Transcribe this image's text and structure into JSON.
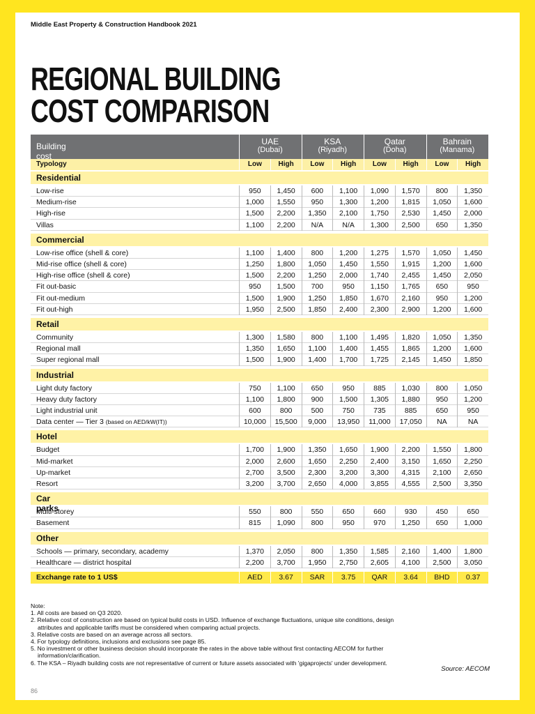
{
  "header": {
    "title": "Middle East Property & Construction Handbook 2021"
  },
  "title": [
    "REGIONAL BUILDING",
    "COST COMPARISON"
  ],
  "table": {
    "caption": "Building cost (US$/sqm)",
    "regions": [
      {
        "name": "UAE",
        "city": "(Dubai)"
      },
      {
        "name": "KSA",
        "city": "(Riyadh)"
      },
      {
        "name": "Qatar",
        "city": "(Doha)"
      },
      {
        "name": "Bahrain",
        "city": "(Manama)"
      }
    ],
    "typology": "Typology",
    "subheaders": [
      "Low",
      "High",
      "Low",
      "High",
      "Low",
      "High",
      "Low",
      "High"
    ],
    "sections": [
      {
        "name": "Residential",
        "rows": [
          {
            "label": "Low-rise",
            "values": [
              "950",
              "1,450",
              "600",
              "1,100",
              "1,090",
              "1,570",
              "800",
              "1,350"
            ]
          },
          {
            "label": "Medium-rise",
            "values": [
              "1,000",
              "1,550",
              "950",
              "1,300",
              "1,200",
              "1,815",
              "1,050",
              "1,600"
            ]
          },
          {
            "label": "High-rise",
            "values": [
              "1,500",
              "2,200",
              "1,350",
              "2,100",
              "1,750",
              "2,530",
              "1,450",
              "2,000"
            ]
          },
          {
            "label": "Villas",
            "values": [
              "1,100",
              "2,200",
              "N/A",
              "N/A",
              "1,300",
              "2,500",
              "650",
              "1,350"
            ]
          }
        ]
      },
      {
        "name": "Commercial",
        "rows": [
          {
            "label": "Low-rise office (shell & core)",
            "values": [
              "1,100",
              "1,400",
              "800",
              "1,200",
              "1,275",
              "1,570",
              "1,050",
              "1,450"
            ]
          },
          {
            "label": "Mid-rise office (shell & core)",
            "values": [
              "1,250",
              "1,800",
              "1,050",
              "1,450",
              "1,550",
              "1,915",
              "1,200",
              "1,600"
            ]
          },
          {
            "label": "High-rise office (shell & core)",
            "values": [
              "1,500",
              "2,200",
              "1,250",
              "2,000",
              "1,740",
              "2,455",
              "1,450",
              "2,050"
            ]
          },
          {
            "label": "Fit out-basic",
            "values": [
              "950",
              "1,500",
              "700",
              "950",
              "1,150",
              "1,765",
              "650",
              "950"
            ]
          },
          {
            "label": "Fit out-medium",
            "values": [
              "1,500",
              "1,900",
              "1,250",
              "1,850",
              "1,670",
              "2,160",
              "950",
              "1,200"
            ]
          },
          {
            "label": "Fit out-high",
            "values": [
              "1,950",
              "2,500",
              "1,850",
              "2,400",
              "2,300",
              "2,900",
              "1,200",
              "1,600"
            ]
          }
        ]
      },
      {
        "name": "Retail",
        "rows": [
          {
            "label": "Community",
            "values": [
              "1,300",
              "1,580",
              "800",
              "1,100",
              "1,495",
              "1,820",
              "1,050",
              "1,350"
            ]
          },
          {
            "label": "Regional mall",
            "values": [
              "1,350",
              "1,650",
              "1,100",
              "1,400",
              "1,455",
              "1,865",
              "1,200",
              "1,600"
            ]
          },
          {
            "label": "Super regional mall",
            "values": [
              "1,500",
              "1,900",
              "1,400",
              "1,700",
              "1,725",
              "2,145",
              "1,450",
              "1,850"
            ]
          }
        ]
      },
      {
        "name": "Industrial",
        "rows": [
          {
            "label": "Light duty factory",
            "values": [
              "750",
              "1,100",
              "650",
              "950",
              "885",
              "1,030",
              "800",
              "1,050"
            ]
          },
          {
            "label": "Heavy duty factory",
            "values": [
              "1,100",
              "1,800",
              "900",
              "1,500",
              "1,305",
              "1,880",
              "950",
              "1,200"
            ]
          },
          {
            "label": "Light industrial unit",
            "values": [
              "600",
              "800",
              "500",
              "750",
              "735",
              "885",
              "650",
              "950"
            ]
          },
          {
            "label": "Data center — Tier 3",
            "label_note": "(based on AED/kW(IT))",
            "values": [
              "10,000",
              "15,500",
              "9,000",
              "13,950",
              "11,000",
              "17,050",
              "NA",
              "NA"
            ]
          }
        ]
      },
      {
        "name": "Hotel",
        "rows": [
          {
            "label": "Budget",
            "values": [
              "1,700",
              "1,900",
              "1,350",
              "1,650",
              "1,900",
              "2,200",
              "1,550",
              "1,800"
            ]
          },
          {
            "label": "Mid-market",
            "values": [
              "2,000",
              "2,600",
              "1,650",
              "2,250",
              "2,400",
              "3,150",
              "1,650",
              "2,250"
            ]
          },
          {
            "label": "Up-market",
            "values": [
              "2,700",
              "3,500",
              "2,300",
              "3,200",
              "3,300",
              "4,315",
              "2,100",
              "2,650"
            ]
          },
          {
            "label": "Resort",
            "values": [
              "3,200",
              "3,700",
              "2,650",
              "4,000",
              "3,855",
              "4,555",
              "2,500",
              "3,350"
            ]
          }
        ]
      },
      {
        "name": "Car parks",
        "rows": [
          {
            "label": "Multi-storey",
            "values": [
              "550",
              "800",
              "550",
              "650",
              "660",
              "930",
              "450",
              "650"
            ]
          },
          {
            "label": "Basement",
            "values": [
              "815",
              "1,090",
              "800",
              "950",
              "970",
              "1,250",
              "650",
              "1,000"
            ]
          }
        ]
      },
      {
        "name": "Other",
        "rows": [
          {
            "label": "Schools — primary, secondary, academy",
            "values": [
              "1,370",
              "2,050",
              "800",
              "1,350",
              "1,585",
              "2,160",
              "1,400",
              "1,800"
            ]
          },
          {
            "label": "Healthcare — district hospital",
            "values": [
              "2,200",
              "3,700",
              "1,950",
              "2,750",
              "2,605",
              "4,100",
              "2,500",
              "3,050"
            ]
          }
        ]
      }
    ],
    "exchange": {
      "label": "Exchange rate to 1 US$",
      "cells": [
        "AED",
        "3.67",
        "SAR",
        "3.75",
        "QAR",
        "3.64",
        "BHD",
        "0.37"
      ]
    }
  },
  "notes": {
    "heading": "Note:",
    "items": [
      "1. All costs are based on Q3 2020.",
      "2. Relative cost of construction are based on typical build costs in USD. Influence of exchange fluctuations, unique site conditions, design attributes and applicable tariffs must be considered when comparing actual projects.",
      "3. Relative costs are based on an average across all sectors.",
      "4. For typology definitions, inclusions and exclusions see page 85.",
      "5. No investment or other business decision should incorporate the rates in the above table without first contacting AECOM for further information/clarification.",
      "6. The KSA – Riyadh building costs are not representative of current or future assets associated with 'gigaprojects' under development."
    ]
  },
  "source": "Source: AECOM",
  "page_number": "86"
}
